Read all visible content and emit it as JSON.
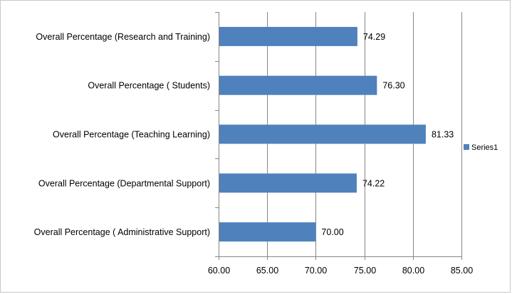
{
  "chart_data": {
    "type": "bar",
    "orientation": "horizontal",
    "categories": [
      "Overall Percentage (Research and Training)",
      "Overall Percentage ( Students)",
      "Overall Percentage (Teaching Learning)",
      "Overall Percentage (Departmental Support)",
      "Overall Percentage ( Administrative Support)"
    ],
    "series": [
      {
        "name": "Series1",
        "values": [
          74.29,
          76.3,
          81.33,
          74.22,
          70.0
        ],
        "labels": [
          "74.29",
          "76.30",
          "81.33",
          "74.22",
          "70.00"
        ],
        "color": "#4f81bd"
      }
    ],
    "xlim": [
      60,
      85
    ],
    "xticks": [
      "60.00",
      "65.00",
      "70.00",
      "75.00",
      "80.00",
      "85.00"
    ],
    "title": "",
    "xlabel": "",
    "ylabel": "",
    "grid": "vertical",
    "legend_position": "right"
  }
}
